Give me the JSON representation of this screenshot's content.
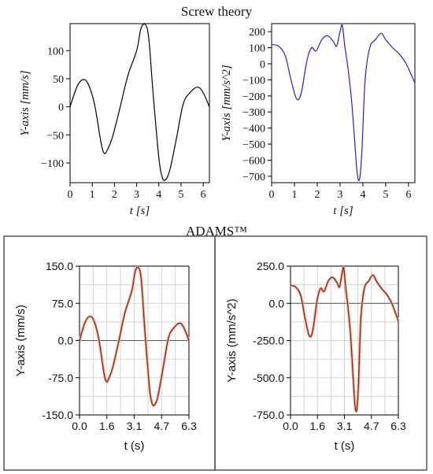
{
  "titles": {
    "top": "Screw theory",
    "bottom": "ADAMS™"
  },
  "chart_data": [
    {
      "id": "screw-velocity",
      "type": "line",
      "xlabel": "t [s]",
      "ylabel": "Y-axis [mm/s]",
      "xlim": [
        0,
        6.28
      ],
      "ylim": [
        -135,
        148
      ],
      "xticks": [
        "0",
        "1",
        "2",
        "3",
        "4",
        "5",
        "6"
      ],
      "xtick_values": [
        0,
        1,
        2,
        3,
        4,
        5,
        6
      ],
      "yticks": [
        "−100",
        "−50",
        "0",
        "50",
        "100"
      ],
      "ytick_values": [
        -100,
        -50,
        0,
        50,
        100
      ],
      "color": "#000000",
      "series": [
        {
          "x": [
            0,
            0.3,
            0.55,
            0.8,
            1.1,
            1.4,
            1.55,
            1.7,
            1.9,
            2.2,
            2.6,
            3.0,
            3.2,
            3.4,
            3.55,
            3.75,
            4.0,
            4.15,
            4.3,
            4.5,
            4.8,
            5.1,
            5.4,
            5.75,
            6.0,
            6.28
          ],
          "y": [
            0,
            35,
            48,
            42,
            5,
            -65,
            -83,
            -75,
            -55,
            -10,
            55,
            100,
            140,
            146,
            120,
            20,
            -90,
            -125,
            -130,
            -112,
            -55,
            5,
            25,
            35,
            25,
            0
          ]
        }
      ]
    },
    {
      "id": "screw-acceleration",
      "type": "line",
      "xlabel": "t [s]",
      "ylabel": "Y-axis [mm/s^2]",
      "xlim": [
        0,
        6.28
      ],
      "ylim": [
        -740,
        250
      ],
      "xticks": [
        "0",
        "1",
        "2",
        "3",
        "4",
        "5",
        "6"
      ],
      "xtick_values": [
        0,
        1,
        2,
        3,
        4,
        5,
        6
      ],
      "yticks": [
        "−700",
        "−600",
        "−500",
        "−400",
        "−300",
        "−200",
        "−100",
        "0",
        "100",
        "200"
      ],
      "ytick_values": [
        -700,
        -600,
        -500,
        -400,
        -300,
        -200,
        -100,
        0,
        100,
        200
      ],
      "color": "#2020cc",
      "series": [
        {
          "x": [
            0,
            0.3,
            0.6,
            0.85,
            1.1,
            1.3,
            1.55,
            1.75,
            1.95,
            2.2,
            2.45,
            2.7,
            2.85,
            3.0,
            3.1,
            3.2,
            3.35,
            3.5,
            3.65,
            3.75,
            3.85,
            3.95,
            4.1,
            4.3,
            4.55,
            4.8,
            5.0,
            5.3,
            5.6,
            5.9,
            6.28
          ],
          "y": [
            120,
            110,
            50,
            -100,
            -220,
            -180,
            20,
            100,
            80,
            150,
            175,
            140,
            110,
            200,
            240,
            120,
            -30,
            -220,
            -500,
            -680,
            -720,
            -560,
            -100,
            100,
            150,
            190,
            150,
            100,
            60,
            0,
            -120
          ]
        }
      ]
    },
    {
      "id": "adams-velocity",
      "type": "line",
      "xlabel": "t (s)",
      "ylabel": "Y-axis (mm/s)",
      "xlim": [
        0,
        6.28
      ],
      "ylim": [
        -150,
        150
      ],
      "xticks": [
        "0.0",
        "1.6",
        "3.1",
        "4.7",
        "6.3"
      ],
      "xtick_values": [
        0,
        1.57,
        3.14,
        4.71,
        6.28
      ],
      "yticks": [
        "150.0",
        "75.0",
        "0.0",
        "-75.0",
        "-150.0"
      ],
      "ytick_values": [
        150,
        75,
        0,
        -75,
        -150
      ],
      "color": "#8b2c14",
      "series": [
        {
          "x": [
            0,
            0.3,
            0.55,
            0.8,
            1.1,
            1.4,
            1.55,
            1.7,
            1.9,
            2.2,
            2.6,
            3.0,
            3.2,
            3.4,
            3.55,
            3.75,
            4.0,
            4.15,
            4.3,
            4.5,
            4.8,
            5.1,
            5.4,
            5.75,
            6.0,
            6.28
          ],
          "y": [
            0,
            35,
            48,
            42,
            5,
            -65,
            -83,
            -75,
            -55,
            -10,
            55,
            100,
            140,
            146,
            120,
            20,
            -90,
            -125,
            -130,
            -112,
            -55,
            5,
            25,
            35,
            25,
            0
          ]
        }
      ]
    },
    {
      "id": "adams-acceleration",
      "type": "line",
      "xlabel": "t (s)",
      "ylabel": "Y-axis (mm/s^2)",
      "xlim": [
        0,
        6.28
      ],
      "ylim": [
        -750,
        250
      ],
      "xticks": [
        "0.0",
        "1.6",
        "3.1",
        "4.7",
        "6.3"
      ],
      "xtick_values": [
        0,
        1.57,
        3.14,
        4.71,
        6.28
      ],
      "yticks": [
        "250.0",
        "0.0",
        "-250.0",
        "-500.0",
        "-750.0"
      ],
      "ytick_values": [
        250,
        0,
        -250,
        -500,
        -750
      ],
      "color": "#8b2c14",
      "series": [
        {
          "x": [
            0,
            0.3,
            0.6,
            0.85,
            1.1,
            1.3,
            1.55,
            1.75,
            1.95,
            2.2,
            2.45,
            2.7,
            2.85,
            3.0,
            3.1,
            3.2,
            3.35,
            3.5,
            3.65,
            3.75,
            3.85,
            3.95,
            4.1,
            4.3,
            4.55,
            4.8,
            5.0,
            5.3,
            5.6,
            5.9,
            6.28
          ],
          "y": [
            120,
            110,
            50,
            -100,
            -220,
            -180,
            20,
            100,
            80,
            150,
            175,
            140,
            110,
            200,
            240,
            120,
            -30,
            -220,
            -500,
            -680,
            -720,
            -560,
            -100,
            100,
            150,
            190,
            150,
            100,
            60,
            0,
            -120
          ]
        }
      ]
    }
  ]
}
